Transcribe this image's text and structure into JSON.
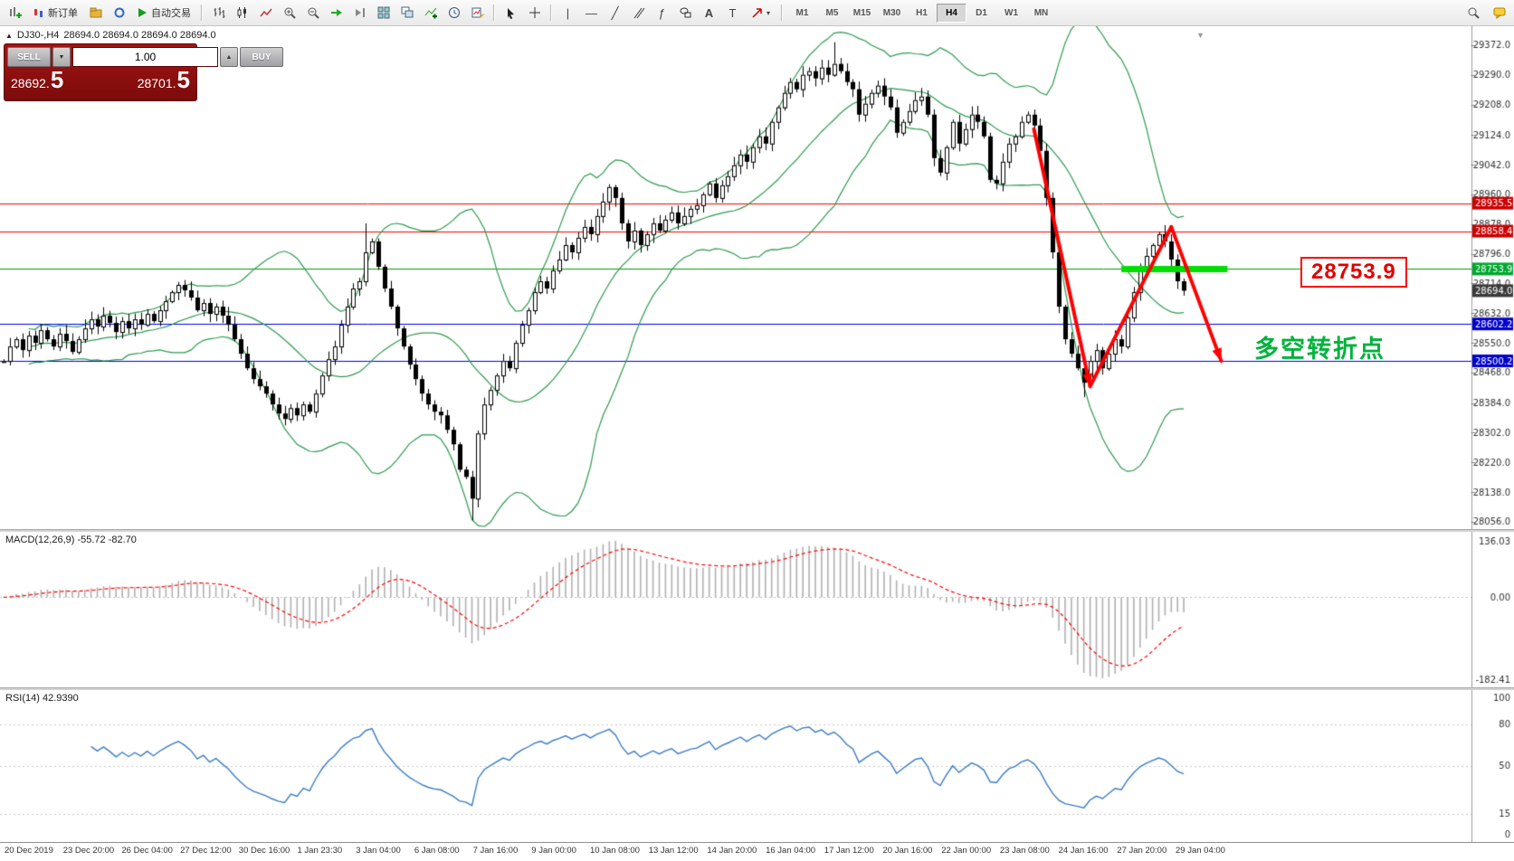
{
  "toolbar": {
    "new_order_label": "新订单",
    "autotrading_label": "自动交易",
    "timeframes": [
      "M1",
      "M5",
      "M15",
      "M30",
      "H1",
      "H4",
      "D1",
      "W1",
      "MN"
    ],
    "active_timeframe": "H4"
  },
  "chart_header": {
    "symbol_period": "DJ30-,H4",
    "ohlc": "28694.0 28694.0 28694.0 28694.0"
  },
  "one_click": {
    "sell_label": "SELL",
    "buy_label": "BUY",
    "volume": "1.00",
    "sell_price": "28692.",
    "sell_price_big": "5",
    "buy_price": "28701.",
    "buy_price_big": "5"
  },
  "annotations": {
    "price_callout": "28753.9",
    "turning_point": "多空转折点"
  },
  "macd_panel": {
    "label": "MACD(12,26,9) -55.72 -82.70",
    "axis": [
      "136.03",
      "0.00",
      "-182.41"
    ]
  },
  "rsi_panel": {
    "label": "RSI(14) 42.9390",
    "axis": [
      "100",
      "80",
      "50",
      "15",
      "0"
    ],
    "levels": [
      80,
      50,
      15
    ]
  },
  "time_axis": {
    "labels": [
      "20 Dec 2019",
      "23 Dec 20:00",
      "26 Dec 04:00",
      "27 Dec 12:00",
      "30 Dec 16:00",
      "1 Jan 23:30",
      "3 Jan 04:00",
      "6 Jan 08:00",
      "7 Jan 16:00",
      "9 Jan 00:00",
      "10 Jan 08:00",
      "13 Jan 12:00",
      "14 Jan 20:00",
      "16 Jan 04:00",
      "17 Jan 12:00",
      "20 Jan 16:00",
      "22 Jan 00:00",
      "23 Jan 08:00",
      "24 Jan 16:00",
      "27 Jan 20:00",
      "29 Jan 04:00"
    ]
  },
  "chart_data": {
    "type": "candlestick",
    "symbol": "DJ30-",
    "period": "H4",
    "price_min": 28036,
    "price_max": 29424,
    "bar_spacing": 6.9,
    "band_color": "#2e9b50",
    "highlight_green": "#00dd00",
    "price_axis_ticks": [
      29372.0,
      29290.0,
      29208.0,
      29124.0,
      29042.0,
      28960.0,
      28878.0,
      28796.0,
      28714.0,
      28632.0,
      28550.0,
      28468.0,
      28384.0,
      28302.0,
      28220.0,
      28138.0,
      28056.0
    ],
    "closes": [
      28500,
      28540,
      28560,
      28530,
      28570,
      28550,
      28585,
      28560,
      28540,
      28575,
      28555,
      28525,
      28560,
      28590,
      28615,
      28595,
      28625,
      28605,
      28580,
      28610,
      28590,
      28615,
      28600,
      28630,
      28610,
      28640,
      28665,
      28690,
      28710,
      28695,
      28675,
      28640,
      28660,
      28630,
      28650,
      28625,
      28600,
      28560,
      28520,
      28480,
      28450,
      28430,
      28410,
      28380,
      28355,
      28340,
      28370,
      28350,
      28380,
      28360,
      28410,
      28460,
      28505,
      28540,
      28600,
      28650,
      28700,
      28720,
      28800,
      28830,
      28760,
      28700,
      28650,
      28590,
      28540,
      28490,
      28450,
      28410,
      28380,
      28360,
      28350,
      28310,
      28270,
      28200,
      28180,
      28120,
      28300,
      28380,
      28420,
      28460,
      28500,
      28480,
      28550,
      28600,
      28640,
      28690,
      28720,
      28700,
      28750,
      28780,
      28820,
      28800,
      28840,
      28870,
      28850,
      28900,
      28940,
      28980,
      28950,
      28880,
      28830,
      28860,
      28820,
      28850,
      28880,
      28860,
      28890,
      28910,
      28880,
      28900,
      28920,
      28930,
      28960,
      28990,
      28950,
      28985,
      29010,
      29040,
      29070,
      29050,
      29090,
      29120,
      29100,
      29160,
      29200,
      29240,
      29270,
      29250,
      29290,
      29300,
      29280,
      29310,
      29290,
      29320,
      29300,
      29270,
      29250,
      29180,
      29210,
      29240,
      29260,
      29230,
      29200,
      29130,
      29160,
      29190,
      29220,
      29230,
      29180,
      29060,
      29020,
      29090,
      29160,
      29100,
      29140,
      29180,
      29160,
      29120,
      29000,
      28990,
      29050,
      29100,
      29120,
      29160,
      29180,
      29150,
      29080,
      28950,
      28800,
      28650,
      28560,
      28520,
      28480,
      28440,
      28500,
      28530,
      28480,
      28520,
      28560,
      28540,
      28620,
      28690,
      28750,
      28790,
      28820,
      28850,
      28830,
      28780,
      28720,
      28694
    ],
    "wick_overrides": {
      "58": {
        "high": 28880
      },
      "75": {
        "low": 28060
      },
      "133": {
        "high": 29380
      },
      "173": {
        "low": 28400
      },
      "186": {
        "high": 28875
      }
    },
    "levels": [
      {
        "price": 28935.5,
        "color": "#ff0000",
        "badge": "28935.5",
        "badge_color": "#cc0000"
      },
      {
        "price": 28858.4,
        "color": "#ff0000",
        "badge": "28858.4",
        "badge_color": "#cc0000"
      },
      {
        "price": 28753.9,
        "color": "#00a000",
        "badge": "28753.9",
        "badge_color": "#00a82e"
      },
      {
        "price": 28602.2,
        "color": "#0000ee",
        "badge": "28602.2",
        "badge_color": "#0000cc"
      },
      {
        "price": 28500.2,
        "color": "#0000ee",
        "badge": "28500.2",
        "badge_color": "#0000cc"
      }
    ],
    "bid_badge": {
      "price": 28694.0,
      "text": "28694.0",
      "color": "#3a3a3a"
    },
    "green_segment": {
      "price": 28753.9,
      "bar_from": 179,
      "bar_to": 196
    },
    "arrows": [
      [
        165,
        29140,
        174,
        28430
      ],
      [
        174,
        28430,
        187,
        28870
      ],
      [
        187,
        28870,
        195,
        28500
      ]
    ],
    "bollinger": {
      "period": 20,
      "deviation": 2
    },
    "macd": {
      "fast": 12,
      "slow": 26,
      "signal": 9
    },
    "rsi": {
      "period": 14
    }
  }
}
